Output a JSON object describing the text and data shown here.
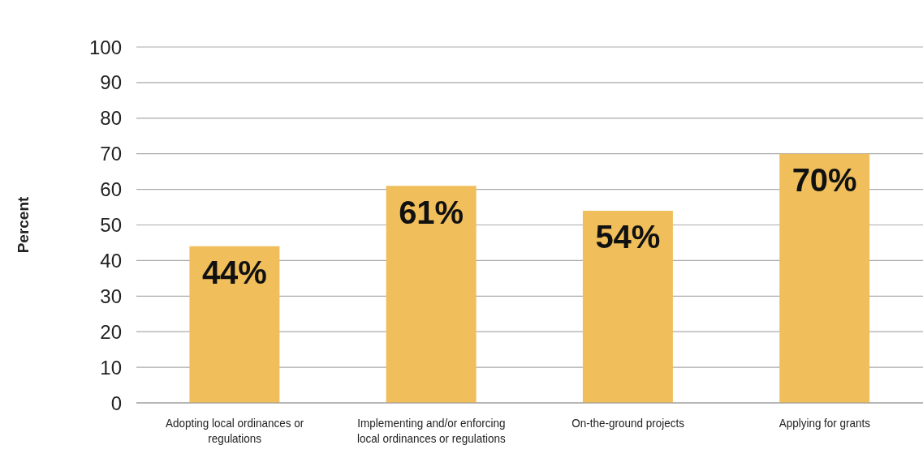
{
  "chart_data": {
    "type": "bar",
    "ylabel": "Percent",
    "categories": [
      "Adopting local ordinances or regulations",
      "Implementing and/or enforcing local ordinances or regulations",
      "On-the-ground projects",
      "Applying for grants"
    ],
    "values": [
      44,
      61,
      54,
      70
    ],
    "value_labels": [
      "44%",
      "61%",
      "54%",
      "70%"
    ],
    "color": "#f0bf5b",
    "ylim": [
      0,
      100
    ],
    "yticks": [
      0,
      10,
      20,
      30,
      40,
      50,
      60,
      70,
      80,
      90,
      100
    ],
    "grid": "y"
  }
}
